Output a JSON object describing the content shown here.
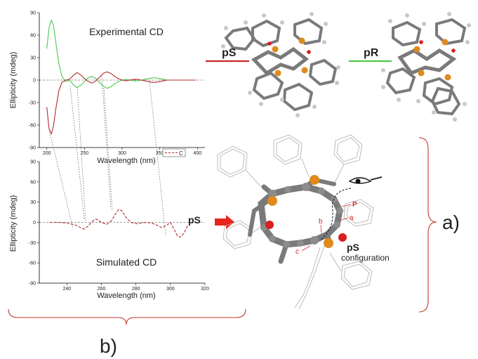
{
  "chart_data": [
    {
      "type": "line",
      "title": "Experimental CD",
      "xlabel": "Wavelength (nm)",
      "ylabel": "Ellipticity (mdeg)",
      "xlim": [
        190,
        410
      ],
      "ylim": [
        -90,
        90
      ],
      "xticks": [
        200,
        250,
        300,
        350,
        400
      ],
      "yticks": [
        -90,
        -60,
        -30,
        0,
        30,
        60,
        90
      ],
      "tick_labels_x": [
        "200",
        "250",
        "300",
        "350",
        "400"
      ],
      "tick_labels_y": [
        "-90",
        "-60",
        "-30",
        "0",
        "30",
        "60",
        "90"
      ],
      "series": [
        {
          "color": "#4cc94c",
          "x": [
            200,
            203,
            206,
            209,
            212,
            216,
            220,
            225,
            230,
            235,
            240,
            245,
            250,
            255,
            260,
            265,
            270,
            275,
            280,
            285,
            290,
            295,
            300,
            305,
            310,
            315,
            320,
            325,
            330,
            335,
            340,
            345,
            350,
            355,
            360,
            365,
            370,
            380,
            390,
            398
          ],
          "y": [
            42,
            70,
            80,
            72,
            50,
            22,
            5,
            -2,
            0,
            -6,
            -10,
            -7,
            -2,
            3,
            5,
            2,
            -3,
            -8,
            -11,
            -9,
            -5,
            -2,
            0,
            1,
            0,
            -1,
            -1,
            0,
            1,
            2,
            3,
            3,
            2,
            1,
            0,
            0,
            0,
            0,
            0,
            0
          ]
        },
        {
          "color": "#b02c2c",
          "x": [
            200,
            203,
            206,
            209,
            212,
            216,
            220,
            225,
            230,
            235,
            240,
            245,
            250,
            255,
            260,
            265,
            270,
            275,
            280,
            285,
            290,
            295,
            300,
            305,
            310,
            315,
            320,
            325,
            330,
            335,
            340,
            345,
            350,
            355,
            360,
            365,
            370,
            380,
            390,
            398
          ],
          "y": [
            -36,
            -65,
            -72,
            -60,
            -38,
            -14,
            -3,
            0,
            1,
            6,
            10,
            7,
            2,
            -2,
            -4,
            -1,
            4,
            9,
            11,
            9,
            5,
            2,
            0,
            -1,
            0,
            1,
            1,
            0,
            -1,
            -2,
            -3,
            -3,
            -2,
            -1,
            0,
            0,
            0,
            0,
            0,
            0
          ]
        }
      ],
      "legend": {
        "entries": [
          "C"
        ],
        "placement": "bottom-right"
      }
    },
    {
      "type": "line",
      "title": "Simulated CD",
      "xlabel": "Wavelength (nm)",
      "ylabel": "Ellipticity (mdeg)",
      "xlim": [
        224,
        320
      ],
      "ylim": [
        -90,
        90
      ],
      "xticks": [
        240,
        260,
        280,
        300,
        320
      ],
      "yticks": [
        -90,
        -60,
        -30,
        0,
        30,
        60,
        90
      ],
      "tick_labels_x": [
        "240",
        "260",
        "280",
        "300",
        "320"
      ],
      "tick_labels_y": [
        "-90",
        "-60",
        "-30",
        "0",
        "30",
        "60",
        "90"
      ],
      "series": [
        {
          "color": "#b02c2c",
          "dashed": true,
          "x": [
            230,
            235,
            240,
            245,
            248,
            250,
            252,
            255,
            257,
            260,
            263,
            266,
            268,
            270,
            272,
            274,
            277,
            280,
            283,
            286,
            289,
            292,
            295,
            298,
            300,
            302,
            304,
            306,
            308,
            310
          ],
          "y": [
            0,
            0,
            -1,
            -4,
            -8,
            -10,
            -6,
            2,
            5,
            0,
            -3,
            3,
            12,
            19,
            17,
            8,
            0,
            -2,
            -1,
            0,
            -1,
            -4,
            -8,
            -4,
            0,
            -10,
            -20,
            -22,
            -15,
            -5
          ]
        }
      ]
    }
  ],
  "labels": {
    "ps_top": "pS",
    "pr_top": "pR",
    "ps_arrow": "pS",
    "ps_config": "pS",
    "config_word": "configuration",
    "atom_p": "P",
    "atom_a": "a",
    "atom_b": "b",
    "atom_c": "c",
    "panel_a": "a)",
    "panel_b": "b)"
  },
  "colors": {
    "green": "#4cc94c",
    "red": "#b02c2c",
    "phosphorus": "#e08a1e",
    "oxygen": "#d81e1e",
    "bracket": "#c0392b"
  }
}
